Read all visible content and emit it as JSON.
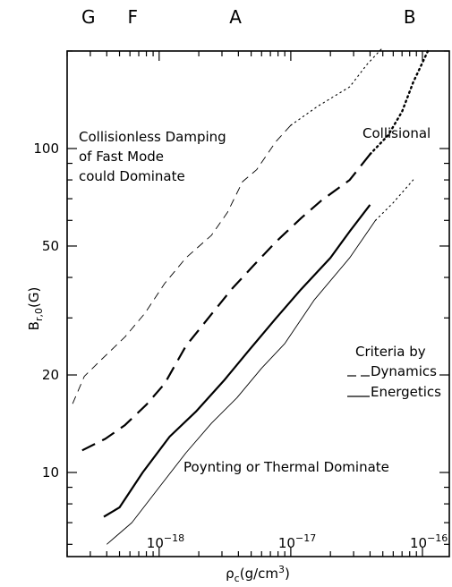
{
  "chart_data": {
    "type": "line",
    "xlabel": "ρ_c(g/cm³)",
    "ylabel": "B_r,0(G)",
    "x_scale": "log",
    "y_scale": "log",
    "xlim": [
      2e-19,
      1.6e-16
    ],
    "ylim": [
      5.5,
      200
    ],
    "x_ticks": [
      {
        "value": 1e-18,
        "mant": "10",
        "exp": "−18"
      },
      {
        "value": 1e-17,
        "mant": "10",
        "exp": "−17"
      },
      {
        "value": 1e-16,
        "mant": "10",
        "exp": "−16"
      }
    ],
    "y_ticks": [
      {
        "value": 10,
        "label": "10"
      },
      {
        "value": 20,
        "label": "20"
      },
      {
        "value": 50,
        "label": "50"
      },
      {
        "value": 100,
        "label": "100"
      }
    ],
    "top_labels": [
      {
        "text": "G",
        "x": 2.9e-19
      },
      {
        "text": "F",
        "x": 6.3e-19
      },
      {
        "text": "A",
        "x": 3.8e-18
      },
      {
        "text": "B",
        "x": 8e-17
      }
    ],
    "series": [
      {
        "style": "thin-dashed",
        "points": [
          [
            2.2e-19,
            16.3
          ],
          [
            2.7e-19,
            19.8
          ],
          [
            3.6e-19,
            22.2
          ],
          [
            5.5e-19,
            26.2
          ],
          [
            7.8e-19,
            31.0
          ],
          [
            1.1e-18,
            38.3
          ],
          [
            1.6e-18,
            46.0
          ],
          [
            2.5e-18,
            54.0
          ],
          [
            3.3e-18,
            63.5
          ],
          [
            4.3e-18,
            79.0
          ],
          [
            5.5e-18,
            86.0
          ],
          [
            7.7e-18,
            105.0
          ],
          [
            1e-17,
            118.0
          ],
          [
            1.6e-17,
            135.0
          ],
          [
            2.8e-17,
            155.0
          ],
          [
            3.8e-17,
            182.0
          ]
        ],
        "dotted_points": [
          [
            1e-17,
            118.0
          ],
          [
            1.6e-17,
            135.0
          ],
          [
            2.8e-17,
            155.0
          ],
          [
            3.8e-17,
            182.0
          ],
          [
            5e-17,
            205.0
          ]
        ]
      },
      {
        "style": "thick-dashed",
        "points": [
          [
            2.6e-19,
            11.7
          ],
          [
            3.9e-19,
            12.7
          ],
          [
            5.5e-19,
            14.0
          ],
          [
            8e-19,
            16.2
          ],
          [
            1.1e-18,
            18.8
          ],
          [
            1.6e-18,
            24.6
          ],
          [
            2.5e-18,
            30.8
          ],
          [
            3.6e-18,
            37.0
          ],
          [
            5.2e-18,
            43.5
          ],
          [
            7.7e-18,
            51.5
          ],
          [
            1.2e-17,
            61.0
          ],
          [
            1.7e-17,
            69.0
          ],
          [
            2.8e-17,
            80.0
          ],
          [
            4e-17,
            96.0
          ]
        ],
        "dotted_points": [
          [
            4e-17,
            96.0
          ],
          [
            5.5e-17,
            110.0
          ],
          [
            7e-17,
            130.0
          ],
          [
            8.5e-17,
            160.0
          ],
          [
            1.1e-16,
            200.0
          ]
        ]
      },
      {
        "style": "thick-solid",
        "points": [
          [
            3.8e-19,
            7.3
          ],
          [
            5e-19,
            7.8
          ],
          [
            7.5e-19,
            10.0
          ],
          [
            1.2e-18,
            12.9
          ],
          [
            1.9e-18,
            15.4
          ],
          [
            3.1e-18,
            19.2
          ],
          [
            4.8e-18,
            23.8
          ],
          [
            7.7e-18,
            29.9
          ],
          [
            1.2e-17,
            36.8
          ],
          [
            2e-17,
            46.0
          ],
          [
            2.8e-17,
            55.5
          ],
          [
            4e-17,
            67.0
          ]
        ]
      },
      {
        "style": "thin-solid",
        "points": [
          [
            4e-19,
            6.0
          ],
          [
            6.2e-19,
            7.0
          ],
          [
            1e-18,
            9.0
          ],
          [
            1.6e-18,
            11.5
          ],
          [
            2.5e-18,
            14.2
          ],
          [
            3.9e-18,
            17.0
          ],
          [
            6e-18,
            21.0
          ],
          [
            9e-18,
            25.0
          ],
          [
            1.5e-17,
            34.0
          ],
          [
            2.8e-17,
            46.0
          ],
          [
            4.4e-17,
            60.0
          ]
        ],
        "dotted_points": [
          [
            4.4e-17,
            60.0
          ],
          [
            6e-17,
            68.0
          ],
          [
            8.5e-17,
            80.0
          ]
        ]
      }
    ],
    "annotations": {
      "region_top_left": [
        "Collisionless Damping",
        "of Fast Mode",
        "could Dominate"
      ],
      "region_top_right": "Collisional",
      "region_bottom": "Poynting or Thermal Dominate",
      "legend_title": "Criteria by",
      "legend_dashed": "Dynamics",
      "legend_solid": "Energetics"
    }
  }
}
